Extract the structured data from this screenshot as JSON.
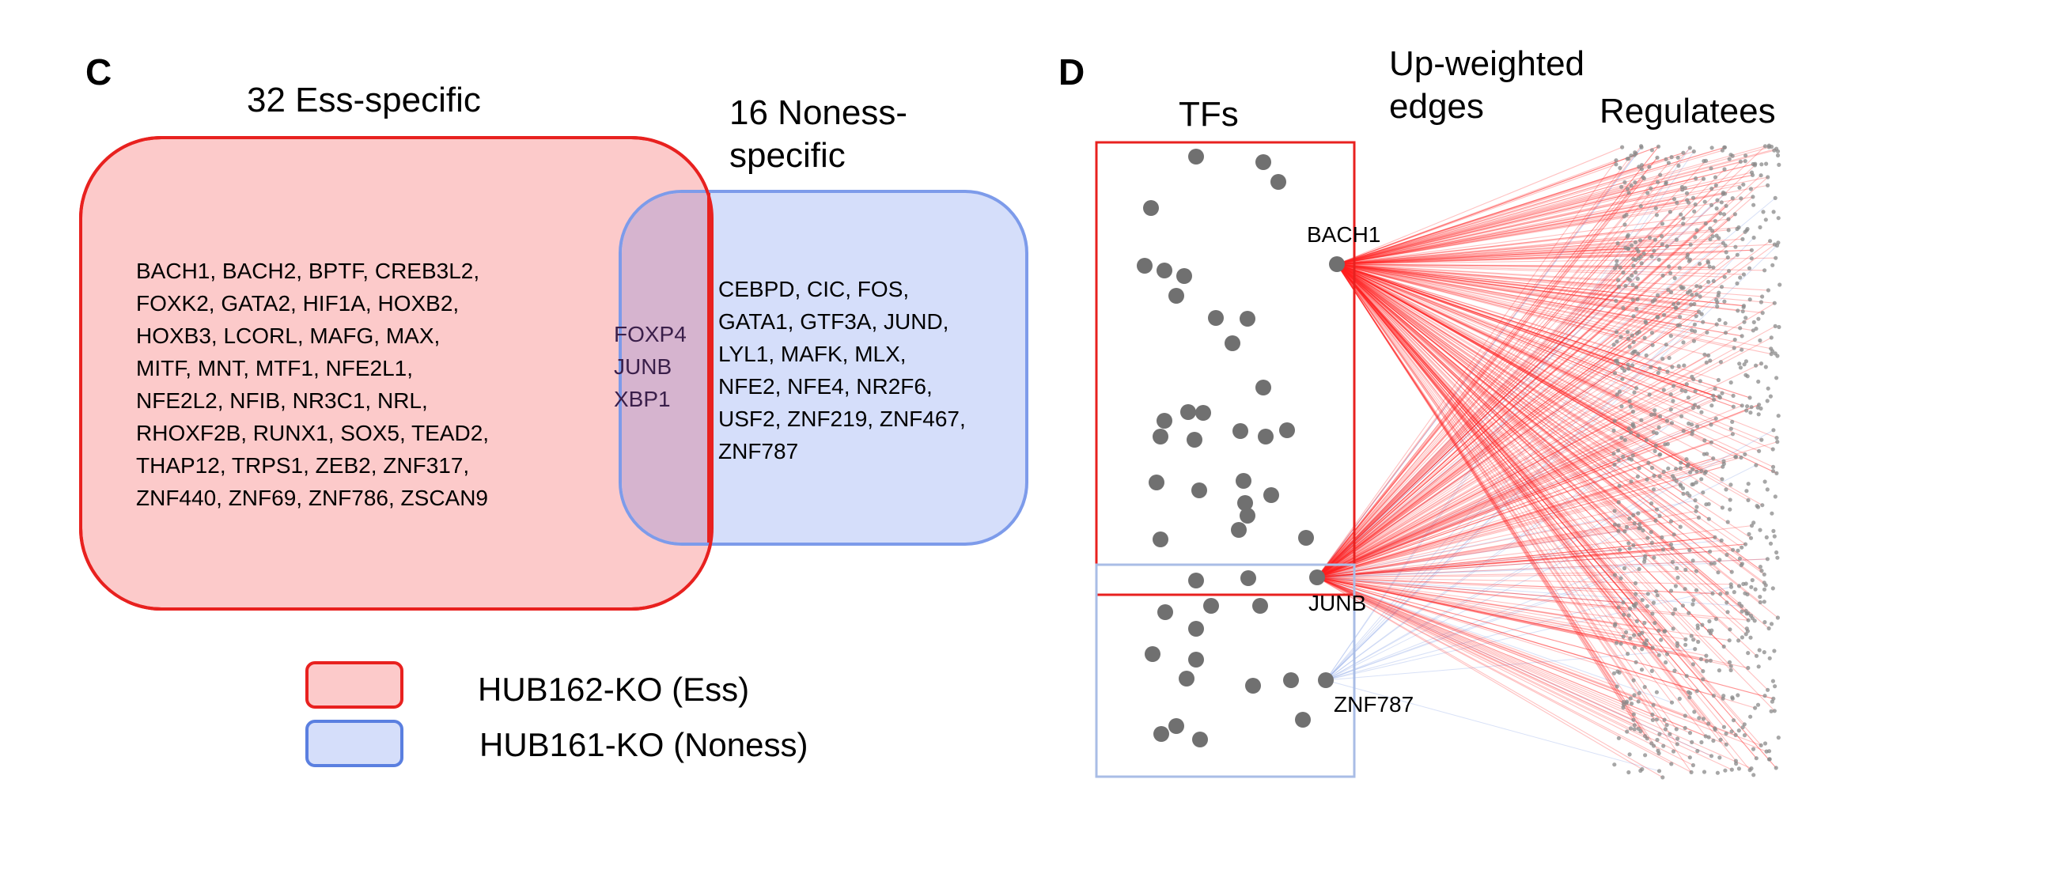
{
  "panel_c": {
    "letter": "C",
    "ess_title": "32 Ess-specific",
    "noness_title": "16 Noness-\nspecific",
    "ess_genes": "BACH1, BACH2, BPTF, CREB3L2,\nFOXK2, GATA2, HIF1A, HOXB2,\nHOXB3, LCORL, MAFG, MAX,\nMITF, MNT, MTF1, NFE2L1,\nNFE2L2, NFIB, NR3C1, NRL,\nRHOXF2B, RUNX1, SOX5, TEAD2,\nTHAP12, TRPS1, ZEB2, ZNF317,\nZNF440, ZNF69, ZNF786, ZSCAN9",
    "shared_genes": "FOXP4\nJUNB\nXBP1",
    "noness_genes": "CEBPD, CIC, FOS,\nGATA1, GTF3A, JUND,\nLYL1, MAFK, MLX,\nNFE2, NFE4, NR2F6,\nUSF2, ZNF219, ZNF467,\nZNF787",
    "legend": [
      {
        "label": "HUB162-KO (Ess)",
        "fill": "#fccaca",
        "border": "#e8211f"
      },
      {
        "label": "HUB161-KO (Noness)",
        "fill": "#d5defa",
        "border": "#5a7fe0"
      }
    ],
    "colors": {
      "ess_fill": "#fccaca",
      "ess_border": "#e8211f",
      "noness_fill": "#d5defa",
      "noness_border": "#7d9bea",
      "overlap_fill": "#d6b4cf"
    }
  },
  "panel_d": {
    "letter": "D",
    "tfs_label": "TFs",
    "edges_label": "Up-weighted\nedges",
    "regulatees_label": "Regulatees",
    "node_labels": {
      "bach1": "BACH1",
      "junb": "JUNB",
      "znf787": "ZNF787"
    },
    "colors": {
      "ess_box": "#e8211f",
      "noness_box": "#a9bde6",
      "edge_red": "#ff2020",
      "edge_blue": "#8fa8e8",
      "tf_dot": "#707070",
      "regulatee_dot": "#8a8a8a"
    }
  }
}
